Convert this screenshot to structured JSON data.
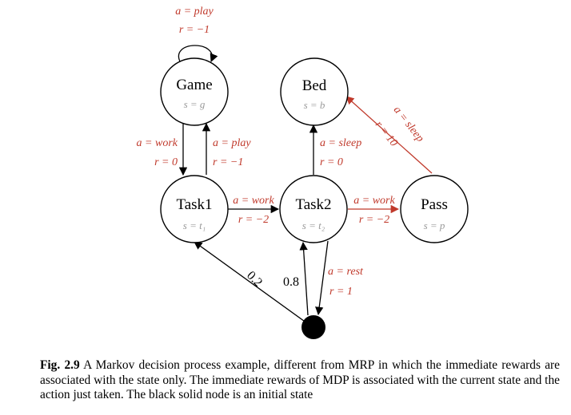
{
  "nodes": {
    "game": {
      "name": "Game",
      "sub": "s = g"
    },
    "bed": {
      "name": "Bed",
      "sub": "s = b"
    },
    "task1": {
      "name": "Task1",
      "sub": "s = t₁"
    },
    "task2": {
      "name": "Task2",
      "sub": "s = t₂"
    },
    "pass": {
      "name": "Pass",
      "sub": "s = p"
    }
  },
  "edges": {
    "game_self": {
      "action": "a = play",
      "reward": "r = −1"
    },
    "game_task1": {
      "action": "a = work",
      "reward": "r = 0"
    },
    "task1_game": {
      "action": "a = play",
      "reward": "r = −1"
    },
    "task1_task2": {
      "action": "a = work",
      "reward": "r = −2"
    },
    "task2_bed": {
      "action": "a = sleep",
      "reward": "r = 0"
    },
    "task2_pass": {
      "action": "a = work",
      "reward": "r = −2"
    },
    "pass_bed": {
      "action": "a = sleep",
      "reward": "r = 10"
    },
    "task2_start": {
      "action": "a = rest",
      "reward": "r = 1"
    },
    "start_task1": {
      "prob": "0.2"
    },
    "start_task2": {
      "prob": "0.8"
    }
  },
  "caption": {
    "label": "Fig. 2.9",
    "text": "A Markov decision process example, different from MRP in which the immediate rewards are associated with the state only. The immediate rewards of MDP is associated with the current state and the action just taken. The black solid node is an initial state"
  },
  "colors": {
    "label_red": "#c0392b",
    "node_stroke": "#000000",
    "subscript_gray": "#9a9a9a"
  }
}
